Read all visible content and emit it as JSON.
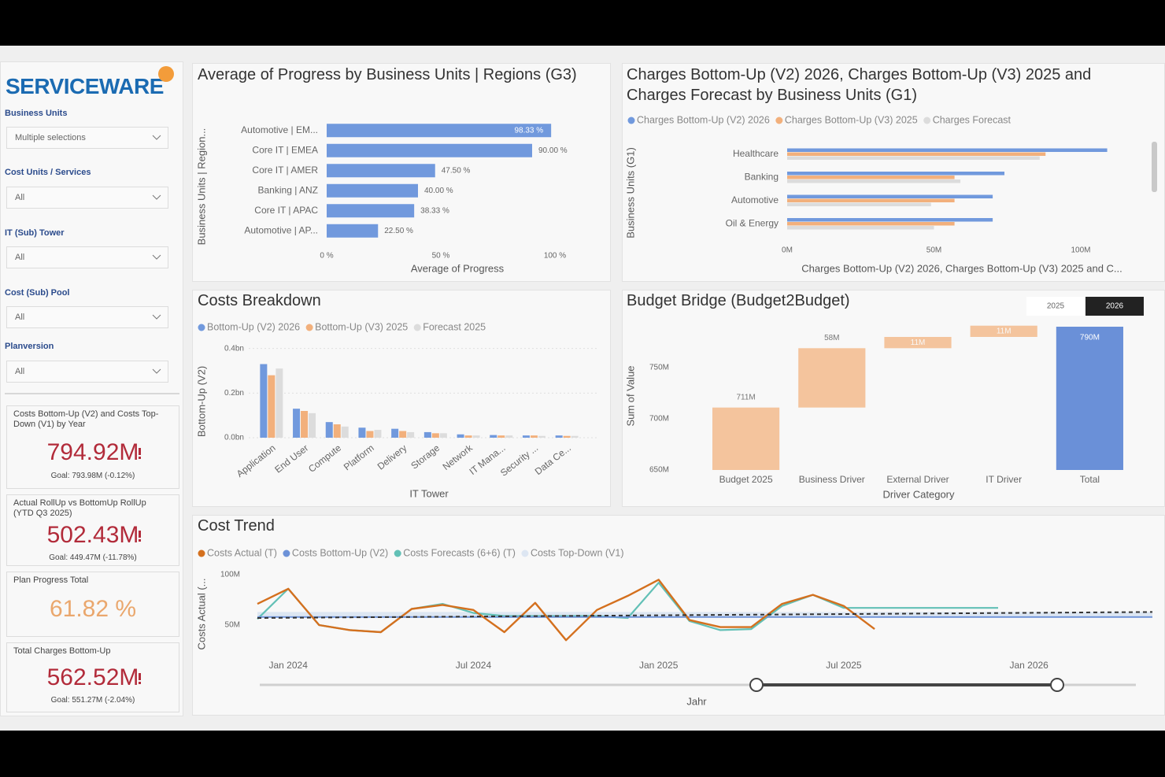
{
  "sidebar": {
    "logo": "SERVICEWARE",
    "filters": [
      {
        "label": "Business Units",
        "value": "Multiple selections"
      },
      {
        "label": "Cost Units / Services",
        "value": "All"
      },
      {
        "label": "IT (Sub) Tower",
        "value": "All"
      },
      {
        "label": "Cost (Sub) Pool",
        "value": "All"
      },
      {
        "label": "Planversion",
        "value": "All"
      }
    ]
  },
  "kpis": [
    {
      "title": "Costs Bottom-Up (V2) and Costs Top-Down (V1) by Year",
      "value": "794.92M",
      "goal": "Goal: 793.98M (-0.12%)"
    },
    {
      "title": "Actual RollUp vs BottomUp RollUp (YTD Q3 2025)",
      "value": "502.43M",
      "goal": "Goal: 449.47M (-11.78%)"
    },
    {
      "title": "Plan Progress Total",
      "value": "61.82 %"
    },
    {
      "title": "Total Charges Bottom-Up",
      "value": "562.52M",
      "goal": "Goal: 551.27M (-2.04%)"
    }
  ],
  "chart_data": [
    {
      "type": "bar",
      "orientation": "horizontal",
      "title": "Average of Progress by Business Units | Regions (G3)",
      "x_label": "Average of Progress",
      "y_label": "Business Units | Region...",
      "categories": [
        "Automotive | EM...",
        "Core IT | EMEA",
        "Core IT | AMER",
        "Banking | ANZ",
        "Core IT | APAC",
        "Automotive | AP..."
      ],
      "values": [
        98.33,
        90,
        47.5,
        40,
        38.33,
        22.5
      ],
      "value_labels": [
        "98.33 %",
        "90.00 %",
        "47.50 %",
        "40.00 %",
        "38.33 %",
        "22.50 %"
      ],
      "color": "#7199dd",
      "xlim": [
        0,
        100
      ],
      "xticks": [
        {
          "value": 0,
          "label": "0 %"
        },
        {
          "value": 50,
          "label": "50 %"
        },
        {
          "value": 100,
          "label": "100 %"
        }
      ]
    },
    {
      "type": "bar",
      "orientation": "horizontal",
      "title": "Charges Bottom-Up (V2) 2026, Charges Bottom-Up (V3) 2025 and Charges Forecast by Business Units (G1)",
      "x_label": "Charges Bottom-Up (V2) 2026, Charges Bottom-Up (V3) 2025 and C...",
      "y_label": "Business Units (G1)",
      "categories": [
        "Healthcare",
        "Banking",
        "Automotive",
        "Oil & Energy"
      ],
      "series": [
        {
          "name": "Charges Bottom-Up (V2) 2026",
          "color": "#7199dd",
          "values": [
            109,
            74,
            70,
            70
          ]
        },
        {
          "name": "Charges Bottom-Up (V3) 2025",
          "color": "#f2b07c",
          "values": [
            88,
            57,
            57,
            57
          ]
        },
        {
          "name": "Charges Forecast",
          "color": "#dcdcdc",
          "values": [
            86,
            59,
            49,
            50
          ]
        }
      ],
      "xlim": [
        0,
        120
      ],
      "xticks": [
        {
          "value": 0,
          "label": "0M"
        },
        {
          "value": 50,
          "label": "50M"
        },
        {
          "value": 100,
          "label": "100M"
        }
      ]
    },
    {
      "type": "bar",
      "orientation": "vertical",
      "title": "Costs Breakdown",
      "x_label": "IT Tower",
      "y_label": "Bottom-Up (V2)",
      "categories": [
        "Application",
        "End User",
        "Compute",
        "Platform",
        "Delivery",
        "Storage",
        "Network",
        "IT Mana...",
        "Security ...",
        "Data Ce..."
      ],
      "series": [
        {
          "name": "Bottom-Up (V2) 2026",
          "color": "#7199dd",
          "values": [
            0.33,
            0.13,
            0.07,
            0.045,
            0.04,
            0.025,
            0.015,
            0.012,
            0.01,
            0.01
          ]
        },
        {
          "name": "Bottom-Up (V3) 2025",
          "color": "#f2b07c",
          "values": [
            0.28,
            0.12,
            0.06,
            0.03,
            0.03,
            0.02,
            0.01,
            0.01,
            0.01,
            0.008
          ]
        },
        {
          "name": "Forecast 2025",
          "color": "#dcdcdc",
          "values": [
            0.31,
            0.11,
            0.05,
            0.035,
            0.025,
            0.02,
            0.01,
            0.01,
            0.008,
            0.008
          ]
        }
      ],
      "ylim": [
        0,
        0.42
      ],
      "yticks": [
        {
          "value": 0,
          "label": "0.0bn"
        },
        {
          "value": 0.2,
          "label": "0.2bn"
        },
        {
          "value": 0.4,
          "label": "0.4bn"
        }
      ],
      "grid": true
    },
    {
      "type": "waterfall",
      "title": "Budget Bridge (Budget2Budget)",
      "x_label": "Driver Category",
      "y_label": "Sum of Value",
      "toggle": [
        "2025",
        "2026"
      ],
      "categories": [
        "Budget 2025",
        "Business Driver",
        "External Driver",
        "IT Driver",
        "Total"
      ],
      "values": [
        711,
        58,
        11,
        11,
        790
      ],
      "value_labels": [
        "711M",
        "58M",
        "11M",
        "11M",
        "790M"
      ],
      "bar_colors": [
        "#f4c49d",
        "#f4c49d",
        "#f4c49d",
        "#f4c49d",
        "#6a90d8"
      ],
      "ylim": [
        650,
        800
      ],
      "yticks": [
        {
          "value": 650,
          "label": "650M"
        },
        {
          "value": 700,
          "label": "700M"
        },
        {
          "value": 750,
          "label": "750M"
        }
      ]
    },
    {
      "type": "line",
      "title": "Cost Trend",
      "x_label": "Jahr",
      "y_label": "Costs Actual (...",
      "x": [
        "2023-12",
        "2024-01",
        "2024-02",
        "2024-03",
        "2024-04",
        "2024-05",
        "2024-06",
        "2024-07",
        "2024-08",
        "2024-09",
        "2024-10",
        "2024-11",
        "2024-12",
        "2025-01",
        "2025-02",
        "2025-03",
        "2025-04",
        "2025-05",
        "2025-06",
        "2025-07",
        "2025-08",
        "2025-09",
        "2025-10",
        "2025-11",
        "2025-12",
        "2026-01",
        "2026-02",
        "2026-03",
        "2026-04",
        "2026-05"
      ],
      "series": [
        {
          "name": "Costs Actual (T)",
          "color": "#d4701e",
          "values": [
            71,
            86,
            50,
            45,
            43,
            66,
            70,
            65,
            43,
            72,
            35,
            65,
            79,
            95,
            55,
            48,
            48,
            71,
            80,
            69,
            46,
            null,
            null,
            null,
            null,
            null,
            null,
            null,
            null,
            null
          ]
        },
        {
          "name": "Costs Bottom-Up (V2)",
          "color": "#6d92d8",
          "values": [
            58,
            58,
            58,
            58,
            58,
            58,
            58,
            58,
            58,
            58,
            58,
            58,
            58,
            58,
            58,
            58,
            58,
            58,
            58,
            58,
            58,
            58,
            58,
            58,
            58,
            58,
            58,
            58,
            58,
            58
          ]
        },
        {
          "name": "Costs Forecasts (6+6) (T)",
          "color": "#62c0b6",
          "values": [
            56,
            86,
            50,
            45,
            43,
            66,
            71,
            62,
            59,
            59,
            59,
            59,
            57,
            92,
            54,
            45,
            46,
            69,
            80,
            67,
            67,
            67,
            67,
            67,
            67,
            null,
            null,
            null,
            null,
            null
          ]
        },
        {
          "name": "Costs Top-Down (V1)",
          "color": "#dde6f2",
          "values": [
            61,
            61,
            61,
            61,
            61,
            61,
            61,
            61,
            61,
            61,
            61,
            61,
            61,
            61,
            61,
            61,
            61,
            61,
            61,
            61,
            61,
            61,
            61,
            61,
            61,
            61,
            61,
            61,
            61,
            61
          ]
        }
      ],
      "trend_line": {
        "color": "#333333",
        "x": [
          "2023-12",
          "2026-05"
        ],
        "values": [
          57,
          63
        ]
      },
      "xlim": [
        "2023-12",
        "2026-05"
      ],
      "xticks": [
        {
          "value": "2024-01",
          "label": "Jan 2024"
        },
        {
          "value": "2024-07",
          "label": "Jul 2024"
        },
        {
          "value": "2025-01",
          "label": "Jan 2025"
        },
        {
          "value": "2025-07",
          "label": "Jul 2025"
        },
        {
          "value": "2026-01",
          "label": "Jan 2026"
        }
      ],
      "ylim": [
        20,
        105
      ],
      "yticks": [
        {
          "value": 50,
          "label": "50M"
        },
        {
          "value": 100,
          "label": "100M"
        }
      ]
    }
  ]
}
